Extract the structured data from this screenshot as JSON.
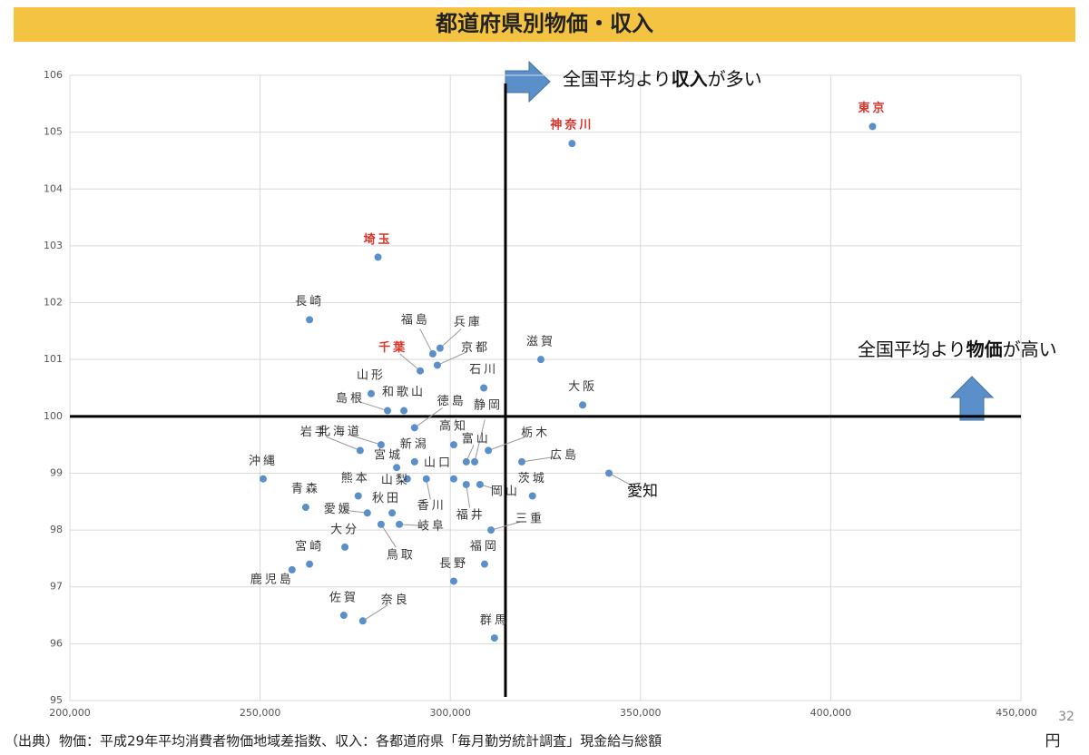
{
  "title": "都道府県別物価・収入",
  "chart_data": {
    "type": "scatter",
    "xlim": [
      200000,
      450000
    ],
    "xticks": [
      {
        "value": 200000,
        "label": "200,000"
      },
      {
        "value": 250000,
        "label": "250,000"
      },
      {
        "value": 300000,
        "label": "300,000"
      },
      {
        "value": 350000,
        "label": "350,000"
      },
      {
        "value": 400000,
        "label": "400,000"
      },
      {
        "value": 450000,
        "label": "450,000"
      }
    ],
    "ylim": [
      95,
      106
    ],
    "yticks": [
      95,
      96,
      97,
      98,
      99,
      100,
      101,
      102,
      103,
      104,
      105,
      106
    ],
    "grid": true,
    "marker_color": "#5b8fc9",
    "label_color": "#333333",
    "highlight_color": "#d9342b",
    "reference_x": 314500,
    "reference_y": 100,
    "points": [
      {
        "label": "東京",
        "x": 411000,
        "y": 105.1,
        "highlight": true
      },
      {
        "label": "神奈川",
        "x": 332000,
        "y": 104.8,
        "highlight": true
      },
      {
        "label": "埼玉",
        "x": 281000,
        "y": 102.8,
        "highlight": true
      },
      {
        "label": "長崎",
        "x": 263000,
        "y": 101.7
      },
      {
        "label": "福島",
        "x": 295400,
        "y": 101.1
      },
      {
        "label": "兵庫",
        "x": 297300,
        "y": 101.2
      },
      {
        "label": "京都",
        "x": 296600,
        "y": 100.9
      },
      {
        "label": "千葉",
        "x": 292100,
        "y": 100.8,
        "highlight": true
      },
      {
        "label": "滋賀",
        "x": 323800,
        "y": 101.0
      },
      {
        "label": "石川",
        "x": 308800,
        "y": 100.5
      },
      {
        "label": "山形",
        "x": 279200,
        "y": 100.4
      },
      {
        "label": "大阪",
        "x": 334800,
        "y": 100.2
      },
      {
        "label": "島根",
        "x": 283500,
        "y": 100.1
      },
      {
        "label": "和歌山",
        "x": 287800,
        "y": 100.1
      },
      {
        "label": "徳島",
        "x": 290600,
        "y": 99.8
      },
      {
        "label": "静岡",
        "x": 306400,
        "y": 99.2
      },
      {
        "label": "岩手",
        "x": 276300,
        "y": 99.4
      },
      {
        "label": "北海道",
        "x": 281800,
        "y": 99.5
      },
      {
        "label": "高知",
        "x": 300900,
        "y": 99.5
      },
      {
        "label": "富山",
        "x": 304200,
        "y": 99.2
      },
      {
        "label": "栃木",
        "x": 310000,
        "y": 99.4
      },
      {
        "label": "新潟",
        "x": 290600,
        "y": 99.2
      },
      {
        "label": "山口",
        "x": 300900,
        "y": 98.9
      },
      {
        "label": "宮城",
        "x": 285900,
        "y": 99.1
      },
      {
        "label": "広島",
        "x": 318800,
        "y": 99.2
      },
      {
        "label": "沖縄",
        "x": 250800,
        "y": 98.9
      },
      {
        "label": "熊本",
        "x": 275800,
        "y": 98.6
      },
      {
        "label": "山梨",
        "x": 288700,
        "y": 98.9
      },
      {
        "label": "茨城",
        "x": 321600,
        "y": 98.6
      },
      {
        "label": "愛知",
        "x": 341700,
        "y": 99.0
      },
      {
        "label": "青森",
        "x": 262000,
        "y": 98.4
      },
      {
        "label": "岡山",
        "x": 307800,
        "y": 98.8
      },
      {
        "label": "香川",
        "x": 293700,
        "y": 98.9
      },
      {
        "label": "福井",
        "x": 304200,
        "y": 98.8
      },
      {
        "label": "愛媛",
        "x": 278200,
        "y": 98.3
      },
      {
        "label": "秋田",
        "x": 284700,
        "y": 98.3
      },
      {
        "label": "三重",
        "x": 310700,
        "y": 98.0
      },
      {
        "label": "大分",
        "x": 272300,
        "y": 97.7
      },
      {
        "label": "岐阜",
        "x": 286600,
        "y": 98.1
      },
      {
        "label": "鳥取",
        "x": 281800,
        "y": 98.1
      },
      {
        "label": "宮崎",
        "x": 263000,
        "y": 97.4
      },
      {
        "label": "福岡",
        "x": 309000,
        "y": 97.4
      },
      {
        "label": "鹿児島",
        "x": 258400,
        "y": 97.3
      },
      {
        "label": "長野",
        "x": 300900,
        "y": 97.1
      },
      {
        "label": "佐賀",
        "x": 272000,
        "y": 96.5
      },
      {
        "label": "奈良",
        "x": 277000,
        "y": 96.4
      },
      {
        "label": "群馬",
        "x": 311600,
        "y": 96.1
      }
    ],
    "annotations": [
      {
        "parts": [
          "全国平均より",
          "収入",
          "が多い"
        ]
      },
      {
        "parts": [
          "全国平均より",
          "物価",
          "が高い"
        ]
      }
    ],
    "x_unit": "円"
  },
  "source": "（出典）物価：平成29年平均消費者物価地域差指数、収入：各都道府県「毎月勤労統計調査」現金給与総額",
  "page_number": "32"
}
